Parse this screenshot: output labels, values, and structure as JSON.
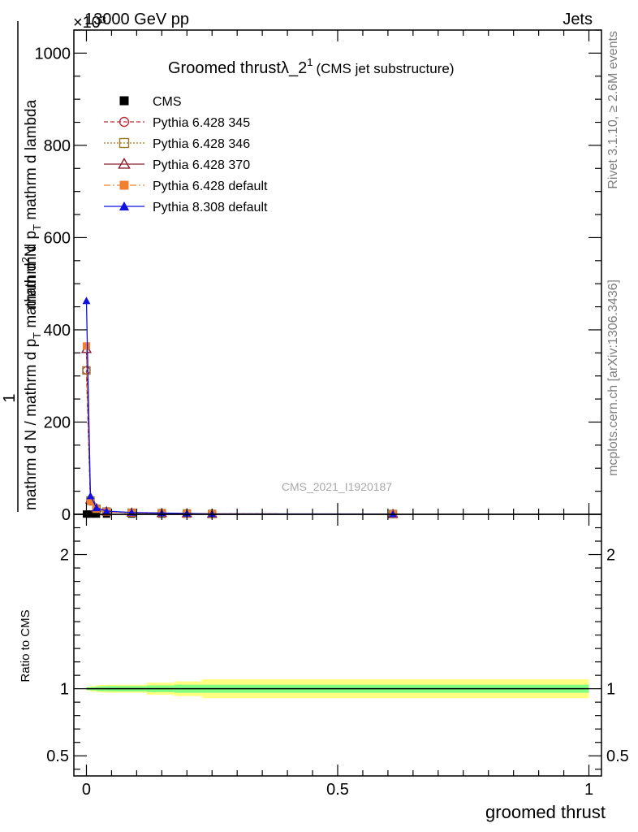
{
  "header": {
    "process": "13000 GeV pp",
    "category": "Jets",
    "multiplier": "×10³"
  },
  "side_labels": {
    "rivet": "Rivet 3.1.10, ≥ 2.6M events",
    "mcplots": "mcplots.cern.ch [arXiv:1306.3436]"
  },
  "watermark": "CMS_2021_I1920187",
  "chart_data": [
    {
      "type": "line",
      "title_main": "Groomed thrust",
      "title_lambda": "λ_2",
      "title_sup": "1",
      "title_sub": "(CMS jet substructure)",
      "ylabel_fraction_num": "1",
      "ylabel_denominator_left": "mathrm d N / mathrm d p",
      "ylabel_denominator_sub": "T",
      "ylabel_upper_num": "mathrm d",
      "ylabel_upper_sup": "2",
      "ylabel_upper_N": "N",
      "ylabel_upper_den": "mathrm d p",
      "ylabel_upper_den_sub": "T",
      "ylabel_upper_den_tail": " mathrm d lambda",
      "xlim": [
        -0.025,
        1.025
      ],
      "ylim": [
        0,
        1050
      ],
      "ytick_values": [
        0,
        200,
        400,
        600,
        800,
        1000
      ],
      "ytick_labels": [
        "0",
        "200",
        "400",
        "600",
        "800",
        "1000"
      ],
      "legend_position": "top-left",
      "series": [
        {
          "name": "CMS",
          "style": "data",
          "x": [
            0.0,
            0.008,
            0.02,
            0.04,
            0.09,
            0.15,
            0.2,
            0.61
          ],
          "y": [
            0.5,
            0.5,
            0.5,
            0.5,
            0.5,
            0.5,
            0.5,
            0.5
          ]
        },
        {
          "name": "Pythia 6.428 345",
          "style": "p345",
          "x": [
            0.0,
            0.008,
            0.02,
            0.04,
            0.09,
            0.15,
            0.2,
            0.25,
            0.61
          ],
          "y": [
            312,
            28,
            12,
            6,
            3.5,
            2.5,
            1.8,
            0.8,
            0.6
          ]
        },
        {
          "name": "Pythia 6.428 346",
          "style": "p346",
          "x": [
            0.0,
            0.008,
            0.02,
            0.04,
            0.09,
            0.15,
            0.2,
            0.25,
            0.61
          ],
          "y": [
            312,
            30,
            12,
            6,
            3.5,
            2.5,
            1.8,
            0.8,
            0.6
          ]
        },
        {
          "name": "Pythia 6.428 370",
          "style": "p370",
          "x": [
            0.0,
            0.008,
            0.02,
            0.04,
            0.09,
            0.15,
            0.2,
            0.25,
            0.61
          ],
          "y": [
            358,
            32,
            13,
            6,
            3.5,
            2.5,
            1.8,
            0.8,
            0.6
          ]
        },
        {
          "name": "Pythia 6.428 default",
          "style": "pdef",
          "x": [
            0.0,
            0.008,
            0.02,
            0.04,
            0.09,
            0.15,
            0.2,
            0.25,
            0.61
          ],
          "y": [
            365,
            28,
            12,
            6,
            3.5,
            2.5,
            1.8,
            0.8,
            0.6
          ]
        },
        {
          "name": "Pythia 8.308 default",
          "style": "p8",
          "x": [
            0.0,
            0.008,
            0.02,
            0.04,
            0.09,
            0.15,
            0.2,
            0.25,
            0.61
          ],
          "y": [
            463,
            40,
            14,
            7,
            4,
            2.8,
            2,
            0.9,
            0.7
          ]
        }
      ]
    },
    {
      "type": "line",
      "xlabel": "groomed thrust",
      "ylabel": "Ratio to CMS",
      "xlim": [
        -0.025,
        1.025
      ],
      "ylim": [
        0.35,
        2.3
      ],
      "xtick_values": [
        0,
        0.5,
        1
      ],
      "xtick_labels": [
        "0",
        "0.5",
        "1"
      ],
      "ytick_values": [
        0.5,
        1,
        2
      ],
      "ytick_labels": [
        "0.5",
        "1",
        "2"
      ],
      "reference": 1,
      "bands": {
        "bins": [
          0,
          0.008,
          0.02,
          0.04,
          0.12,
          0.175,
          0.23,
          1.0
        ],
        "inner_half": [
          0.01,
          0.012,
          0.018,
          0.02,
          0.025,
          0.03,
          0.03
        ],
        "outer_half": [
          0.015,
          0.02,
          0.028,
          0.03,
          0.045,
          0.055,
          0.07
        ]
      }
    }
  ]
}
